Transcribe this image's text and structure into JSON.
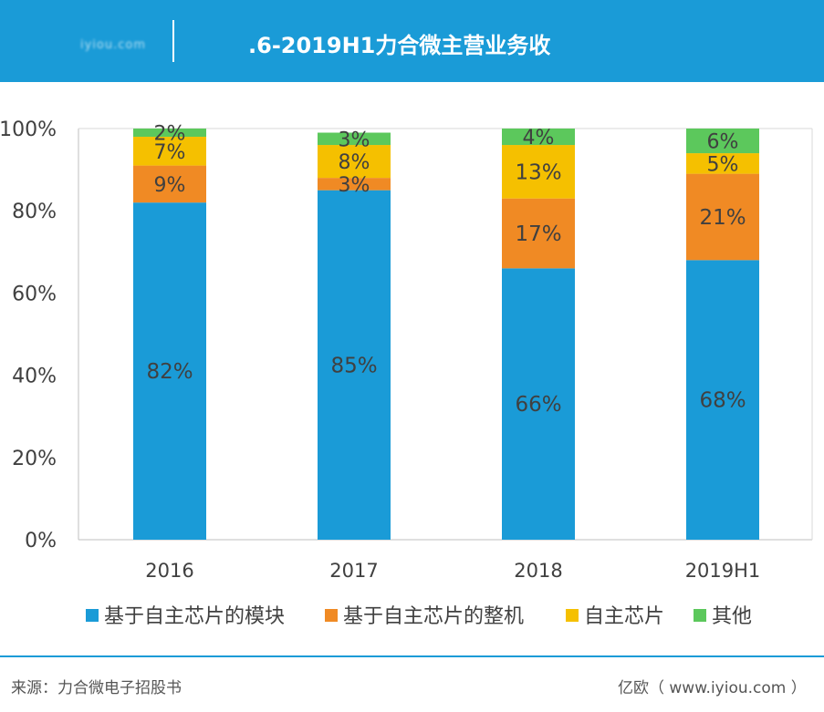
{
  "header": {
    "logo_text": "iyiou.com",
    "title": ".6-2019H1力合微主营业务收"
  },
  "footer": {
    "source": "来源：力合微电子招股书",
    "credit": "亿欧（ www.iyiou.com ）"
  },
  "colors": {
    "header_bg": "#1a9bd7",
    "series": [
      "#1a9bd7",
      "#f08a24",
      "#f5c000",
      "#5cc85c"
    ]
  },
  "chart_data": {
    "type": "bar",
    "stacked": true,
    "categories": [
      "2016",
      "2017",
      "2018",
      "2019H1"
    ],
    "series": [
      {
        "name": "基于自主芯片的模块",
        "values": [
          82,
          85,
          66,
          68
        ],
        "labels": [
          "82%",
          "85%",
          "66%",
          "68%"
        ]
      },
      {
        "name": "基于自主芯片的整机",
        "values": [
          9,
          3,
          17,
          21
        ],
        "labels": [
          "9%",
          "3%",
          "17%",
          "21%"
        ]
      },
      {
        "name": "自主芯片",
        "values": [
          7,
          8,
          13,
          5
        ],
        "labels": [
          "7%",
          "8%",
          "13%",
          "5%"
        ]
      },
      {
        "name": "其他",
        "values": [
          2,
          3,
          4,
          6
        ],
        "labels": [
          "2%",
          "3%",
          "4%",
          "6%"
        ]
      }
    ],
    "ylim": [
      0,
      100
    ],
    "yticks": [
      0,
      20,
      40,
      60,
      80,
      100
    ],
    "ytick_labels": [
      "0%",
      "20%",
      "40%",
      "60%",
      "80%",
      "100%"
    ],
    "legend_position": "bottom",
    "gridlines": false
  }
}
